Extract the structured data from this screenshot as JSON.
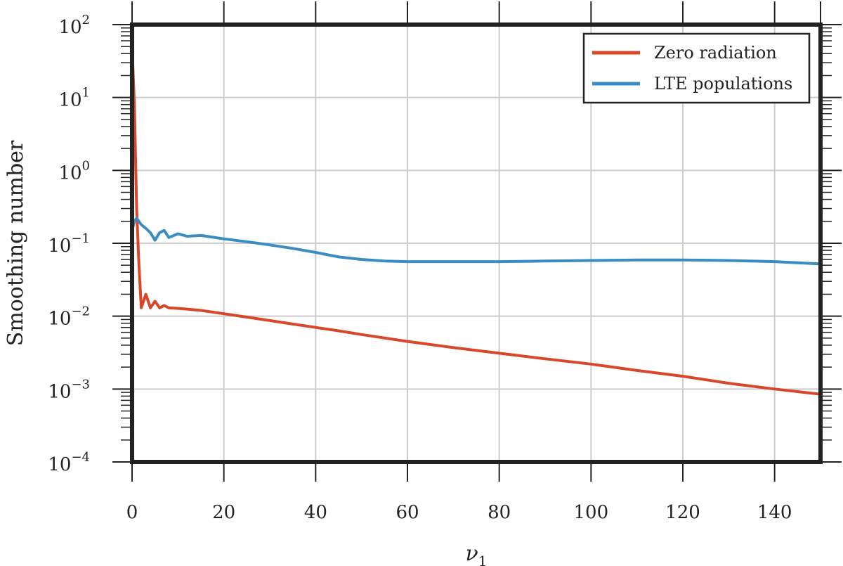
{
  "chart_data": {
    "type": "line",
    "xlabel": "ν",
    "xlabel_sub": "1",
    "ylabel": "Smoothing number",
    "xlim": [
      0,
      150
    ],
    "ylim": [
      0.0001,
      100
    ],
    "yscale": "log",
    "grid": true,
    "legend_position": "top-right",
    "x_ticks": [
      0,
      20,
      40,
      60,
      80,
      100,
      120,
      140
    ],
    "y_ticks": [
      {
        "value": 100,
        "base": "10",
        "exp": "2"
      },
      {
        "value": 10,
        "base": "10",
        "exp": "1"
      },
      {
        "value": 1,
        "base": "10",
        "exp": "0"
      },
      {
        "value": 0.1,
        "base": "10",
        "exp": "−1"
      },
      {
        "value": 0.01,
        "base": "10",
        "exp": "−2"
      },
      {
        "value": 0.001,
        "base": "10",
        "exp": "−3"
      },
      {
        "value": 0.0001,
        "base": "10",
        "exp": "−4"
      }
    ],
    "series": [
      {
        "name": "Zero radiation",
        "color": "#d9472b",
        "x": [
          0,
          0.5,
          1,
          1.5,
          2,
          3,
          4,
          5,
          6,
          7,
          8,
          10,
          12,
          15,
          20,
          25,
          30,
          35,
          40,
          45,
          50,
          60,
          70,
          80,
          90,
          100,
          110,
          120,
          130,
          140,
          150
        ],
        "y": [
          50,
          8,
          0.3,
          0.05,
          0.013,
          0.02,
          0.013,
          0.016,
          0.013,
          0.014,
          0.013,
          0.0128,
          0.0125,
          0.012,
          0.0108,
          0.0097,
          0.0087,
          0.0078,
          0.007,
          0.0063,
          0.0056,
          0.0045,
          0.0037,
          0.0031,
          0.0026,
          0.0022,
          0.0018,
          0.0015,
          0.0012,
          0.001,
          0.00085
        ]
      },
      {
        "name": "LTE populations",
        "color": "#3a8dc4",
        "x": [
          0,
          0.5,
          1,
          2,
          3,
          4,
          5,
          6,
          7,
          8,
          10,
          12,
          15,
          20,
          25,
          30,
          35,
          40,
          45,
          50,
          55,
          60,
          70,
          80,
          90,
          100,
          110,
          120,
          130,
          140,
          150
        ],
        "y": [
          0.15,
          0.2,
          0.22,
          0.18,
          0.16,
          0.14,
          0.11,
          0.14,
          0.15,
          0.12,
          0.135,
          0.125,
          0.128,
          0.115,
          0.105,
          0.095,
          0.085,
          0.075,
          0.065,
          0.06,
          0.057,
          0.056,
          0.056,
          0.056,
          0.057,
          0.058,
          0.059,
          0.059,
          0.058,
          0.056,
          0.052
        ]
      }
    ]
  }
}
